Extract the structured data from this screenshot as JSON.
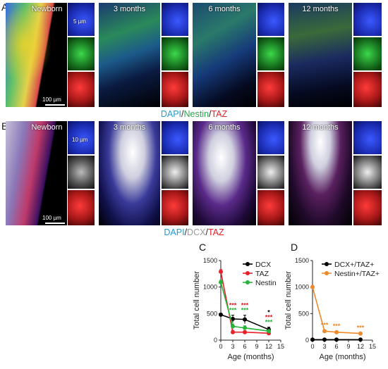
{
  "panels": {
    "A": {
      "letter": "A",
      "tiles": [
        {
          "label": "Newborn",
          "scale": "100 µm",
          "inset_scale": "5 µm"
        },
        {
          "label": "3 months"
        },
        {
          "label": "6 months"
        },
        {
          "label": "12 months"
        }
      ],
      "legend": {
        "dapi": "DAPI",
        "sep1": "/",
        "marker": "Nestin",
        "sep2": "/",
        "taz": "TAZ"
      }
    },
    "B": {
      "letter": "B",
      "tiles": [
        {
          "label": "Newborn",
          "scale": "100 µm",
          "inset_scale": "10 µm"
        },
        {
          "label": "3 months"
        },
        {
          "label": "6 months"
        },
        {
          "label": "12 months"
        }
      ],
      "legend": {
        "dapi": "DAPI",
        "sep1": "/",
        "marker": "DCX",
        "sep2": "/",
        "taz": "TAZ"
      }
    }
  },
  "colors": {
    "dapi": "#1f9bd7",
    "nestin": "#2fa84f",
    "dcx": "#9a9a9a",
    "taz": "#e8202a",
    "black": "#000000",
    "red": "#e8202a",
    "green": "#28b43c",
    "orange": "#ef8a2b"
  },
  "chart_data": [
    {
      "type": "line",
      "panel": "C",
      "x": [
        0,
        3,
        6,
        12
      ],
      "xlabel": "Age (months)",
      "ylabel": "Total cell number",
      "xlim": [
        0,
        15
      ],
      "ylim": [
        0,
        1500
      ],
      "xticks": [
        0,
        3,
        6,
        9,
        12,
        15
      ],
      "yticks": [
        0,
        500,
        1000,
        1500
      ],
      "legend_position": "top-right",
      "series": [
        {
          "name": "DCX",
          "color": "#000000",
          "values": [
            480,
            400,
            390,
            200
          ],
          "err": [
            25,
            70,
            80,
            45
          ]
        },
        {
          "name": "TAZ",
          "color": "#e8202a",
          "values": [
            1290,
            150,
            150,
            130
          ],
          "err": [
            40,
            35,
            30,
            25
          ]
        },
        {
          "name": "Nestin",
          "color": "#28b43c",
          "values": [
            1090,
            260,
            230,
            170
          ],
          "err": [
            40,
            45,
            40,
            30
          ]
        }
      ],
      "annotations": [
        {
          "x": 3,
          "lines": [
            {
              "text": "***",
              "color": "#e8202a"
            },
            {
              "text": "***",
              "color": "#28b43c"
            }
          ]
        },
        {
          "x": 6,
          "lines": [
            {
              "text": "***",
              "color": "#e8202a"
            },
            {
              "text": "***",
              "color": "#28b43c"
            }
          ]
        },
        {
          "x": 12,
          "lines": [
            {
              "text": "*",
              "color": "#000000"
            },
            {
              "text": "***",
              "color": "#e8202a"
            },
            {
              "text": "***",
              "color": "#28b43c"
            }
          ]
        }
      ]
    },
    {
      "type": "line",
      "panel": "D",
      "x": [
        0,
        3,
        6,
        12
      ],
      "xlabel": "Age (months)",
      "ylabel": "Total cell number",
      "xlim": [
        0,
        15
      ],
      "ylim": [
        0,
        1500
      ],
      "xticks": [
        0,
        3,
        6,
        9,
        12,
        15
      ],
      "yticks": [
        0,
        500,
        1000,
        1500
      ],
      "legend_position": "top-right",
      "series": [
        {
          "name": "DCX+/TAZ+",
          "color": "#000000",
          "values": [
            10,
            10,
            10,
            10
          ],
          "err": [
            0,
            0,
            0,
            0
          ]
        },
        {
          "name": "Nestin+/TAZ+",
          "color": "#ef8a2b",
          "values": [
            1000,
            170,
            150,
            125
          ],
          "err": [
            30,
            20,
            20,
            15
          ]
        }
      ],
      "annotations": [
        {
          "x": 3,
          "lines": [
            {
              "text": "***",
              "color": "#ef8a2b"
            }
          ]
        },
        {
          "x": 6,
          "lines": [
            {
              "text": "***",
              "color": "#ef8a2b"
            }
          ]
        },
        {
          "x": 12,
          "lines": [
            {
              "text": "***",
              "color": "#ef8a2b"
            }
          ]
        }
      ]
    }
  ],
  "panel_letters": {
    "C": "C",
    "D": "D"
  }
}
